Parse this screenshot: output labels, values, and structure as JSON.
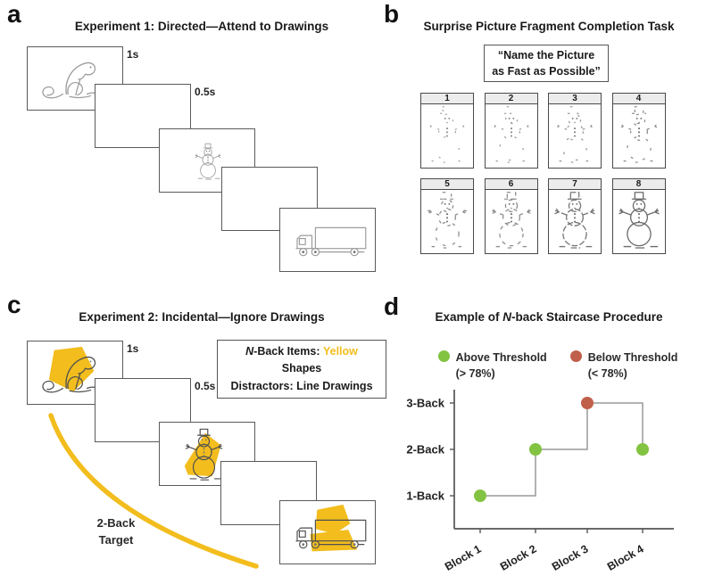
{
  "panels": {
    "a": {
      "label": "a",
      "title": "Experiment 1: Directed—Attend to Drawings",
      "timing_labels": {
        "stimulus": "1s",
        "isi": "0.5s"
      },
      "sequence": [
        "monkey line drawing",
        "blank",
        "snowman line drawing",
        "blank",
        "truck line drawing"
      ]
    },
    "b": {
      "label": "b",
      "title": "Surprise Picture Fragment Completion Task",
      "instruction": "“Name the Picture as Fast as Possible”",
      "fragments": [
        "1",
        "2",
        "3",
        "4",
        "5",
        "6",
        "7",
        "8"
      ]
    },
    "c": {
      "label": "c",
      "title": "Experiment 2: Incidental—Ignore Drawings",
      "timing_labels": {
        "stimulus": "1s",
        "isi": "0.5s"
      },
      "info_box": {
        "line1_italic": "N",
        "line1_text": "-Back Items: ",
        "line1_highlight": "Yellow",
        "line1_rest": " Shapes",
        "line2": "Distractors: Line Drawings"
      },
      "target_label": [
        "2-Back",
        "Target"
      ]
    },
    "d": {
      "label": "d",
      "title_prefix": "Example of ",
      "title_italic": "N",
      "title_suffix": "-back Staircase Procedure"
    }
  },
  "colors": {
    "yellow": "#F2BD1D",
    "above_green": "#82C341",
    "below_red": "#C05F4A",
    "sketch_gray": "#9B9B9B",
    "frame_border": "#5A5A5A",
    "chart_line": "#999999",
    "axis": "#555555"
  },
  "chart_data": {
    "type": "line",
    "subtype": "staircase-step",
    "title": "Example of N-back Staircase Procedure",
    "categories": [
      "Block 1",
      "Block 2",
      "Block 3",
      "Block 4"
    ],
    "series": [
      {
        "name": "N-back level",
        "values": [
          1,
          2,
          3,
          2
        ]
      }
    ],
    "point_status": [
      "above",
      "above",
      "below",
      "above"
    ],
    "ytick_labels": [
      "1-Back",
      "2-Back",
      "3-Back"
    ],
    "ylim": [
      1,
      3
    ],
    "grid": false,
    "legend_position": "top",
    "legend": [
      {
        "status": "above",
        "label": "Above Threshold",
        "sublabel": "(> 78%)",
        "color": "#82C341"
      },
      {
        "status": "below",
        "label": "Below Threshold",
        "sublabel": "(< 78%)",
        "color": "#C05F4A"
      }
    ]
  }
}
